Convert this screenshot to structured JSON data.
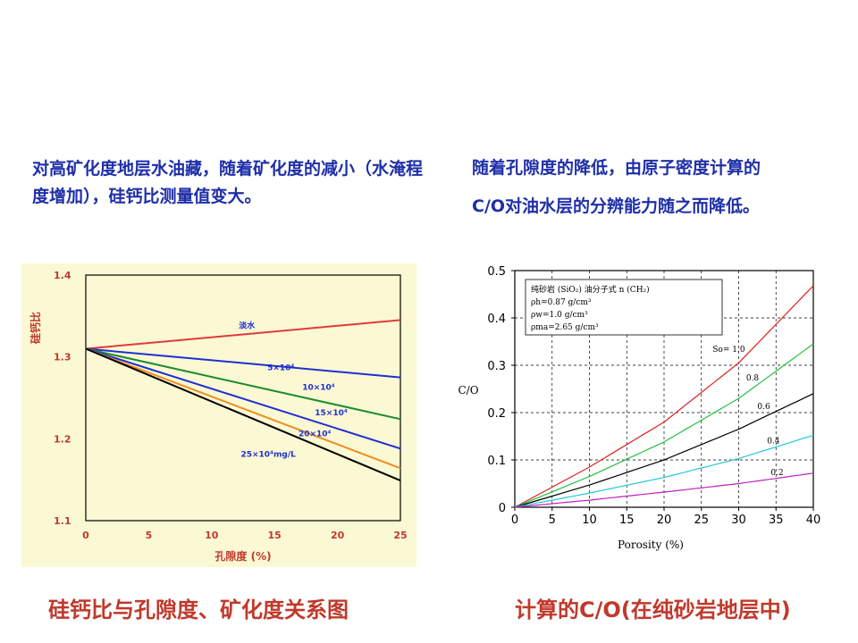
{
  "text": {
    "left_paragraph": "对高矿化度地层水油藏，随着矿化度的减小（水淹程度增加），硅钙比测量值变大。",
    "right_paragraph_line1": "随着孔隙度的降低，由原子密度计算的",
    "right_paragraph_line2": "C/O对油水层的分辨能力随之而降低。",
    "left_caption": "硅钙比与孔隙度、矿化度关系图",
    "right_caption": "计算的C/O(在纯砂岩地层中)"
  },
  "chart_data": [
    {
      "type": "line",
      "title": "",
      "xlabel": "孔隙度 (%)",
      "ylabel": "硅钙比",
      "xlim": [
        0,
        25
      ],
      "ylim": [
        1.1,
        1.4
      ],
      "x_ticks": [
        0,
        5,
        10,
        15,
        20,
        25
      ],
      "y_ticks": [
        1.1,
        1.2,
        1.3,
        1.4
      ],
      "y_tick_labels": [
        "1.1",
        "1.2",
        "1.3",
        "1.4"
      ],
      "grid": false,
      "series": [
        {
          "name": "淡水",
          "color": "#e03a3a",
          "x": [
            0,
            25
          ],
          "y": [
            1.31,
            1.345
          ]
        },
        {
          "name": "5×10⁴",
          "color": "#1f2fd0",
          "x": [
            0,
            25
          ],
          "y": [
            1.31,
            1.275
          ]
        },
        {
          "name": "10×10⁴",
          "color": "#1a8a2a",
          "x": [
            0,
            25
          ],
          "y": [
            1.31,
            1.224
          ]
        },
        {
          "name": "15×10⁴",
          "color": "#1f2fd0",
          "x": [
            0,
            25
          ],
          "y": [
            1.31,
            1.188
          ]
        },
        {
          "name": "20×10⁴",
          "color": "#ee8c1e",
          "x": [
            0,
            25
          ],
          "y": [
            1.31,
            1.164
          ]
        },
        {
          "name": "25×10⁴mg/L",
          "color": "#000000",
          "x": [
            0,
            25
          ],
          "y": [
            1.31,
            1.149
          ]
        }
      ]
    },
    {
      "type": "line",
      "title": "",
      "xlabel": "Porosity (%)",
      "ylabel": "C/O",
      "xlim": [
        0,
        40
      ],
      "ylim": [
        0,
        0.5
      ],
      "x_ticks": [
        0,
        5,
        10,
        15,
        20,
        25,
        30,
        35,
        40
      ],
      "y_ticks": [
        0,
        0.1,
        0.2,
        0.3,
        0.4,
        0.5
      ],
      "y_tick_labels": [
        "0",
        "0.1",
        "0.2",
        "0.3",
        "0.4",
        "0.5"
      ],
      "grid": true,
      "legend_box": [
        "纯砂岩 (SiO₂) 油分子式 n (CH₂)",
        "ρh=0.87 g/cm³",
        "ρw=1.0 g/cm³",
        "ρma=2.65 g/cm³"
      ],
      "series": [
        {
          "name": "So= 1.0",
          "color": "#e02020",
          "x": [
            0,
            10,
            20,
            30,
            40
          ],
          "y": [
            0,
            0.085,
            0.18,
            0.305,
            0.468
          ]
        },
        {
          "name": "0.8",
          "color": "#22c040",
          "x": [
            0,
            10,
            20,
            30,
            40
          ],
          "y": [
            0,
            0.065,
            0.138,
            0.23,
            0.345
          ]
        },
        {
          "name": "0.6",
          "color": "#000000",
          "x": [
            0,
            10,
            20,
            30,
            40
          ],
          "y": [
            0,
            0.047,
            0.1,
            0.165,
            0.24
          ]
        },
        {
          "name": "0.4",
          "color": "#22c8d8",
          "x": [
            0,
            10,
            20,
            30,
            40
          ],
          "y": [
            0,
            0.03,
            0.063,
            0.103,
            0.152
          ]
        },
        {
          "name": "0.2",
          "color": "#c020c0",
          "x": [
            0,
            10,
            20,
            30,
            40
          ],
          "y": [
            0,
            0.015,
            0.032,
            0.05,
            0.072
          ]
        }
      ]
    }
  ]
}
